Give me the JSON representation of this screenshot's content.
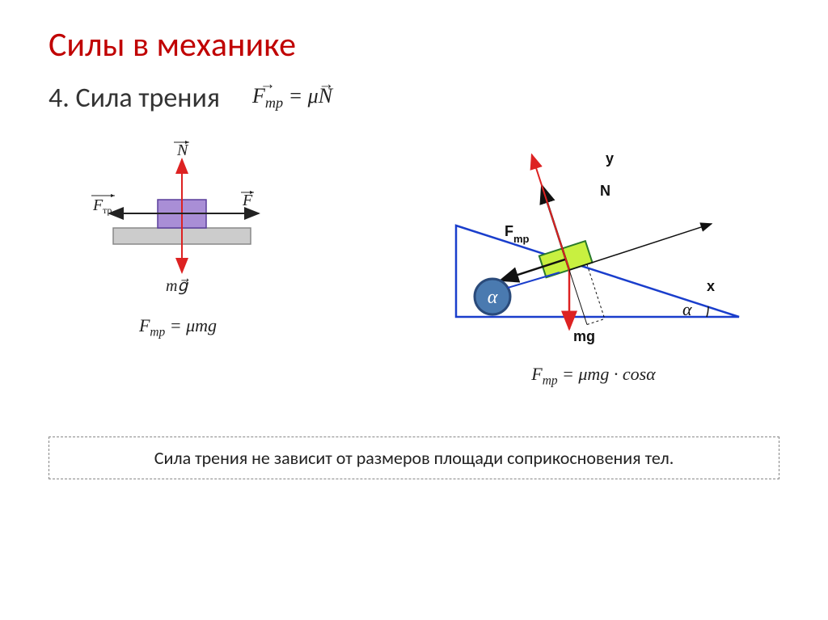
{
  "title": "Силы в механике",
  "subtitle": "4. Сила трения",
  "main_formula_html": "<span class='arrow-over'>F<span class='sub'>тр</span></span> = μ<span class='arrow-over'>N</span>",
  "note": "Сила трения не зависит от размеров площади соприкосновения тел.",
  "diagram_left": {
    "type": "physics-diagram",
    "formula": "F<span class='sub'>тр</span> = μmg",
    "labels": {
      "N": "N",
      "Ftr": "F<span class='sub'>тр</span>",
      "F": "F",
      "mg": "mğ"
    },
    "colors": {
      "block": "#a98ed6",
      "block_border": "#5a3e9c",
      "surface": "#cccccc",
      "surface_border": "#888888",
      "vertical_arrow": "#d22",
      "horizontal_arrow": "#222"
    }
  },
  "diagram_right": {
    "type": "physics-diagram",
    "formula": "F<span class='sub'>тр</span> = μmg · cosα",
    "labels": {
      "y": "y",
      "N": "N",
      "Fmp": "Fmp",
      "x": "x",
      "mg": "mg",
      "alpha": "α"
    },
    "angle_deg": 18,
    "colors": {
      "incline": "#1a3ecc",
      "y_axis": "#d22",
      "block_fill": "#c8f040",
      "block_border": "#2a7a2a",
      "alpha_circle_fill": "#4a7ab0",
      "alpha_circle_border": "#2a4a7a",
      "mg_arrow": "#d22",
      "text": "#111"
    }
  },
  "fonts": {
    "title_size": 42,
    "subtitle_size": 34,
    "formula_size": 22,
    "note_size": 22
  }
}
